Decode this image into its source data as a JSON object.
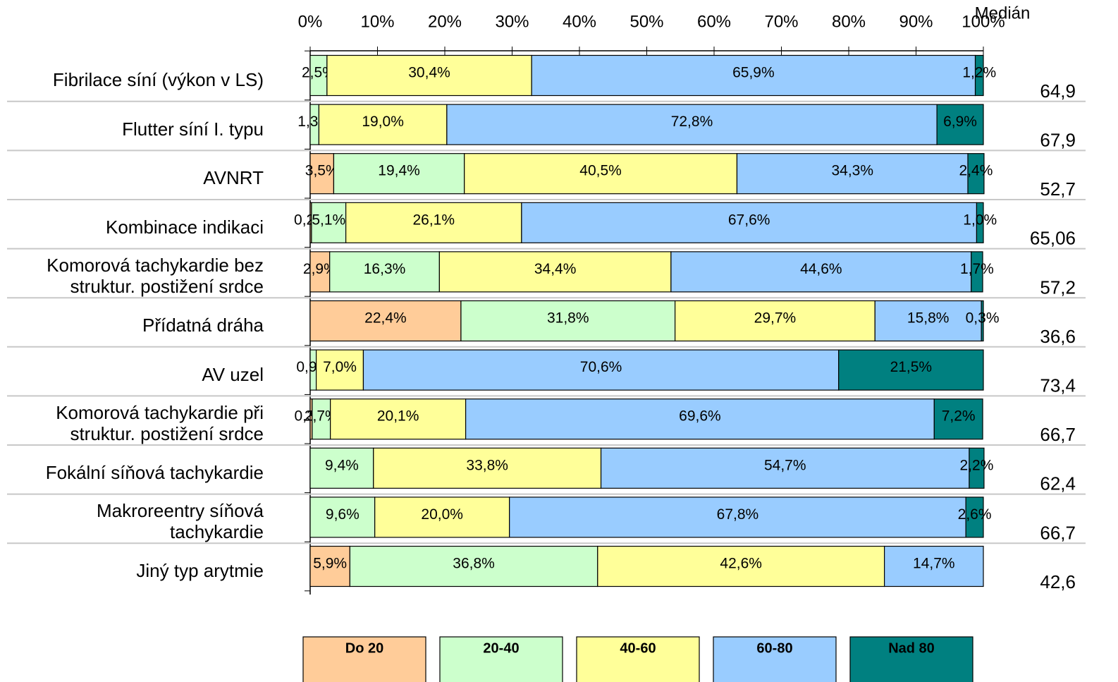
{
  "chart_data": {
    "type": "stacked_bar_horizontal",
    "categories": [
      "Fibrilace síní (výkon v LS)",
      "Flutter síní I. typu",
      "AVNRT",
      "Kombinace indikaci",
      "Komorová tachykardie bez\nstruktur. postižení srdce",
      "Přídatná dráha",
      "AV uzel",
      "Komorová tachykardie při\nstruktur. postižení srdce",
      "Fokální síňová tachykardie",
      "Makroreentry síňová\ntachykardie",
      "Jiný typ arytmie"
    ],
    "series": [
      {
        "name": "Do 20",
        "color": "#ffcc99",
        "values": [
          null,
          null,
          3.5,
          0.2,
          2.9,
          22.4,
          null,
          0.3,
          null,
          null,
          5.9
        ],
        "value_labels": [
          null,
          null,
          "3,5%",
          "0,2%",
          "2,9%",
          "22,4%",
          null,
          "0,3%",
          null,
          null,
          "5,9%"
        ]
      },
      {
        "name": "20-40",
        "color": "#ccffcc",
        "values": [
          2.5,
          1.3,
          19.4,
          5.1,
          16.3,
          31.8,
          0.9,
          2.7,
          9.4,
          9.6,
          36.8
        ],
        "value_labels": [
          "2,5%",
          "1,3%",
          "19,4%",
          "5,1%",
          "16,3%",
          "31,8%",
          "0,9%",
          "2,7%",
          "9,4%",
          "9,6%",
          "36,8%"
        ]
      },
      {
        "name": "40-60",
        "color": "#ffff99",
        "values": [
          30.4,
          19.0,
          40.5,
          26.1,
          34.4,
          29.7,
          7.0,
          20.1,
          33.8,
          20.0,
          42.6
        ],
        "value_labels": [
          "30,4%",
          "19,0%",
          "40,5%",
          "26,1%",
          "34,4%",
          "29,7%",
          "7,0%",
          "20,1%",
          "33,8%",
          "20,0%",
          "42,6%"
        ]
      },
      {
        "name": "60-80",
        "color": "#99ccff",
        "values": [
          65.9,
          72.8,
          34.3,
          67.6,
          44.6,
          15.8,
          70.6,
          69.6,
          54.7,
          67.8,
          14.7
        ],
        "value_labels": [
          "65,9%",
          "72,8%",
          "34,3%",
          "67,6%",
          "44,6%",
          "15,8%",
          "70,6%",
          "69,6%",
          "54,7%",
          "67,8%",
          "14,7%"
        ]
      },
      {
        "name": "Nad 80",
        "color": "#008080",
        "values": [
          1.2,
          6.9,
          2.4,
          1.0,
          1.7,
          0.3,
          21.5,
          7.2,
          2.2,
          2.6,
          null
        ],
        "value_labels": [
          "1,2%",
          "6,9%",
          "2,4%",
          "1,0%",
          "1,7%",
          "0,3%",
          "21,5%",
          "7,2%",
          "2,2%",
          "2,6%",
          null
        ]
      }
    ],
    "median": {
      "title": "Medián",
      "values": [
        64.9,
        67.9,
        52.7,
        65.06,
        57.2,
        36.6,
        73.4,
        66.7,
        62.4,
        66.7,
        42.6
      ],
      "value_labels": [
        "64,9",
        "67,9",
        "52,7",
        "65,06",
        "57,2",
        "36,6",
        "73,4",
        "66,7",
        "62,4",
        "66,7",
        "42,6"
      ]
    },
    "xlim": [
      0,
      100
    ],
    "xticks": [
      {
        "value": 0,
        "label": "0%"
      },
      {
        "value": 10,
        "label": "10%"
      },
      {
        "value": 20,
        "label": "20%"
      },
      {
        "value": 30,
        "label": "30%"
      },
      {
        "value": 40,
        "label": "40%"
      },
      {
        "value": 50,
        "label": "50%"
      },
      {
        "value": 60,
        "label": "60%"
      },
      {
        "value": 70,
        "label": "70%"
      },
      {
        "value": 80,
        "label": "80%"
      },
      {
        "value": 90,
        "label": "90%"
      },
      {
        "value": 100,
        "label": "100%"
      }
    ]
  }
}
